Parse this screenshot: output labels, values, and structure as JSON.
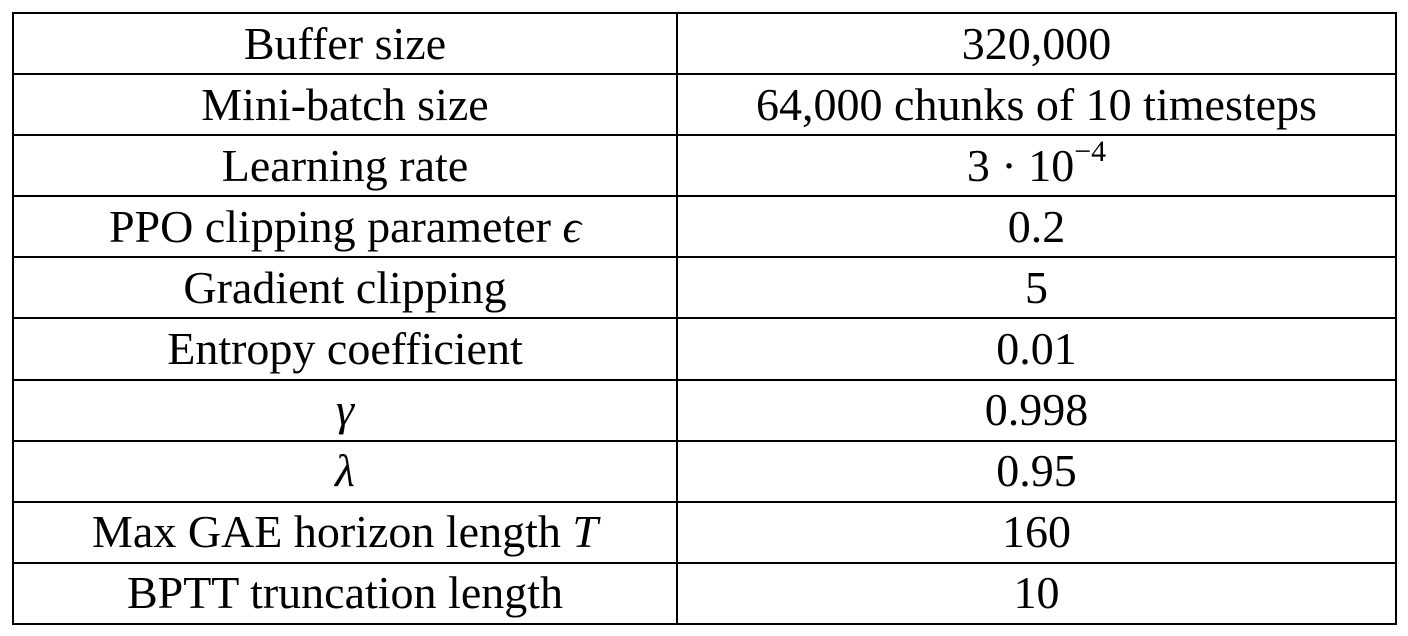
{
  "table": {
    "rows": [
      {
        "param": "Buffer size",
        "value": "320,000"
      },
      {
        "param": "Mini-batch size",
        "value": "64,000 chunks of 10 timesteps"
      },
      {
        "param": "Learning rate",
        "value_base": "3 · 10",
        "value_exp": "−4"
      },
      {
        "param": "PPO clipping parameter",
        "param_symbol": "ϵ",
        "value": "0.2"
      },
      {
        "param": "Gradient clipping",
        "value": "5"
      },
      {
        "param": "Entropy coefficient",
        "value": "0.01"
      },
      {
        "param_symbol": "γ",
        "value": "0.998"
      },
      {
        "param_symbol": "λ",
        "value": "0.95"
      },
      {
        "param": "Max GAE horizon length",
        "param_symbol": "T",
        "value": "160"
      },
      {
        "param": "BPTT truncation length",
        "value": "10"
      }
    ]
  }
}
